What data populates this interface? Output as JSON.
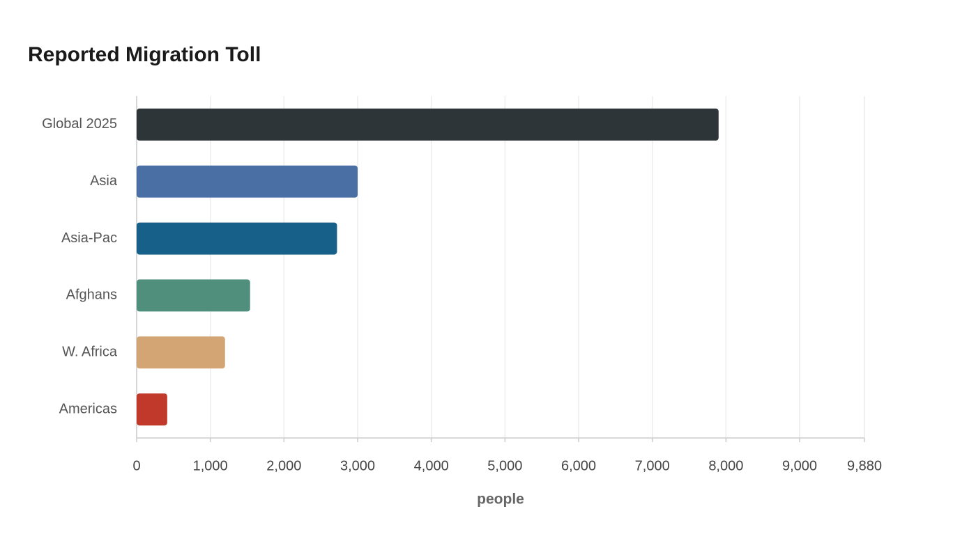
{
  "chart_data": {
    "type": "bar",
    "orientation": "horizontal",
    "title": "Reported Migration Toll",
    "categories": [
      "Global 2025",
      "Asia",
      "Asia-Pac",
      "Afghans",
      "W. Africa",
      "Americas"
    ],
    "values": [
      7900,
      3000,
      2720,
      1540,
      1200,
      415
    ],
    "colors": [
      "#2e3538",
      "#4a6fa5",
      "#176089",
      "#4f8f7c",
      "#d4a574",
      "#c0392b"
    ],
    "xlabel": "people",
    "xlim": [
      0,
      9880
    ],
    "xticks": [
      0,
      {
        "value": 1000,
        "label": "1,000"
      },
      {
        "value": 2000,
        "label": "2,000"
      },
      {
        "value": 3000,
        "label": "3,000"
      },
      {
        "value": 4000,
        "label": "4,000"
      },
      {
        "value": 5000,
        "label": "5,000"
      },
      {
        "value": 6000,
        "label": "6,000"
      },
      {
        "value": 7000,
        "label": "7,000"
      },
      {
        "value": 8000,
        "label": "8,000"
      },
      {
        "value": 9000,
        "label": "9,000"
      },
      {
        "value": 9880,
        "label": "9,880"
      }
    ],
    "grid": true
  }
}
